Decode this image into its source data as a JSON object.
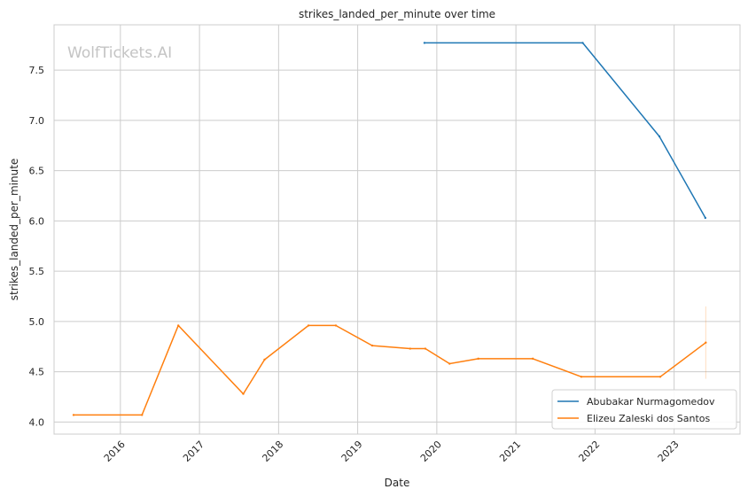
{
  "chart_data": {
    "type": "line",
    "title": "strikes_landed_per_minute over time",
    "xlabel": "Date",
    "ylabel": "strikes_landed_per_minute",
    "watermark": "WolfTickets.AI",
    "grid": true,
    "legend_position": "bottom-right",
    "x_ticks": [
      "2016",
      "2017",
      "2018",
      "2019",
      "2020",
      "2021",
      "2022",
      "2023"
    ],
    "y_ticks": [
      "4.0",
      "4.5",
      "5.0",
      "5.5",
      "6.0",
      "6.5",
      "7.0",
      "7.5"
    ],
    "xlim": [
      "2015-03-01",
      "2023-11-01"
    ],
    "ylim": [
      3.88,
      7.95
    ],
    "series": [
      {
        "name": "Abubakar Nurmagomedov",
        "color": "#1f77b4",
        "points": [
          {
            "x": "2019-11-05",
            "y": 7.77
          },
          {
            "x": "2021-11-05",
            "y": 7.77
          },
          {
            "x": "2022-10-25",
            "y": 6.84
          },
          {
            "x": "2023-05-25",
            "y": 6.03
          }
        ]
      },
      {
        "name": "Elizeu Zaleski dos Santos",
        "color": "#ff7f0e",
        "points": [
          {
            "x": "2015-05-30",
            "y": 4.07
          },
          {
            "x": "2016-04-10",
            "y": 4.07
          },
          {
            "x": "2016-09-25",
            "y": 4.96
          },
          {
            "x": "2017-07-22",
            "y": 4.28
          },
          {
            "x": "2017-10-28",
            "y": 4.62
          },
          {
            "x": "2018-05-19",
            "y": 4.96
          },
          {
            "x": "2018-09-22",
            "y": 4.96
          },
          {
            "x": "2019-03-09",
            "y": 4.76
          },
          {
            "x": "2019-08-31",
            "y": 4.73
          },
          {
            "x": "2019-11-09",
            "y": 4.73
          },
          {
            "x": "2020-02-29",
            "y": 4.58
          },
          {
            "x": "2020-07-11",
            "y": 4.63
          },
          {
            "x": "2021-03-20",
            "y": 4.63
          },
          {
            "x": "2021-10-30",
            "y": 4.45
          },
          {
            "x": "2022-10-29",
            "y": 4.45
          },
          {
            "x": "2023-05-27",
            "y": 4.79
          }
        ]
      }
    ]
  }
}
